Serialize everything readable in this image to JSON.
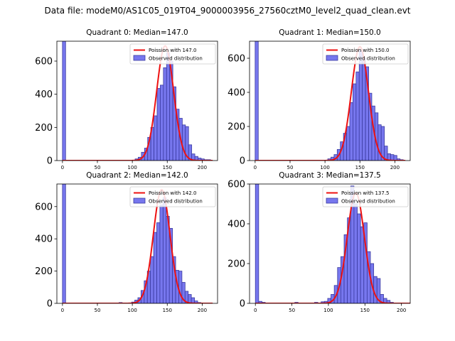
{
  "figure": {
    "suptitle": "Data file: modeM0/AS1C05_019T04_9000003956_27560cztM0_level2_quad_clean.evt"
  },
  "chart_data": [
    {
      "type": "bar",
      "title": "Quadrant 0: Median=147.0",
      "xlim": [
        -8,
        222
      ],
      "ylim": [
        0,
        720
      ],
      "xticks": [
        0,
        50,
        100,
        150,
        200
      ],
      "yticks": [
        0,
        200,
        400,
        600
      ],
      "bin_width": 4.5,
      "bins": [
        {
          "x": 0,
          "count": 720
        },
        {
          "x": 104,
          "count": 10
        },
        {
          "x": 108.5,
          "count": 20
        },
        {
          "x": 113,
          "count": 50
        },
        {
          "x": 117.5,
          "count": 75
        },
        {
          "x": 122,
          "count": 140
        },
        {
          "x": 126.5,
          "count": 200
        },
        {
          "x": 131,
          "count": 270
        },
        {
          "x": 135.5,
          "count": 435
        },
        {
          "x": 140,
          "count": 455
        },
        {
          "x": 144.5,
          "count": 560
        },
        {
          "x": 149,
          "count": 650
        },
        {
          "x": 153.5,
          "count": 600
        },
        {
          "x": 158,
          "count": 445
        },
        {
          "x": 162.5,
          "count": 310
        },
        {
          "x": 167,
          "count": 255
        },
        {
          "x": 171.5,
          "count": 215
        },
        {
          "x": 176,
          "count": 205
        },
        {
          "x": 180.5,
          "count": 95
        },
        {
          "x": 185,
          "count": 40
        },
        {
          "x": 189.5,
          "count": 25
        },
        {
          "x": 194,
          "count": 15
        },
        {
          "x": 198.5,
          "count": 10
        },
        {
          "x": 203,
          "count": 5
        },
        {
          "x": 207.5,
          "count": 5
        }
      ],
      "poisson": {
        "mean": 147.0,
        "peak": 692
      },
      "legend": {
        "position": "top-right",
        "entries": [
          "Poission with 147.0",
          "Observed distribution"
        ]
      }
    },
    {
      "type": "bar",
      "title": "Quadrant 1: Median=150.0",
      "xlim": [
        -8,
        222
      ],
      "ylim": [
        0,
        700
      ],
      "xticks": [
        0,
        50,
        100,
        150,
        200
      ],
      "yticks": [
        0,
        200,
        400,
        600
      ],
      "bin_width": 4.5,
      "bins": [
        {
          "x": 0,
          "count": 700
        },
        {
          "x": 104,
          "count": 10
        },
        {
          "x": 108.5,
          "count": 20
        },
        {
          "x": 113,
          "count": 35
        },
        {
          "x": 117.5,
          "count": 65
        },
        {
          "x": 122,
          "count": 110
        },
        {
          "x": 126.5,
          "count": 160
        },
        {
          "x": 131,
          "count": 200
        },
        {
          "x": 135.5,
          "count": 340
        },
        {
          "x": 140,
          "count": 450
        },
        {
          "x": 144.5,
          "count": 520
        },
        {
          "x": 149,
          "count": 645
        },
        {
          "x": 153.5,
          "count": 600
        },
        {
          "x": 158,
          "count": 550
        },
        {
          "x": 162.5,
          "count": 395
        },
        {
          "x": 167,
          "count": 320
        },
        {
          "x": 171.5,
          "count": 280
        },
        {
          "x": 176,
          "count": 210
        },
        {
          "x": 180.5,
          "count": 200
        },
        {
          "x": 185,
          "count": 85
        },
        {
          "x": 189.5,
          "count": 40
        },
        {
          "x": 194,
          "count": 35
        },
        {
          "x": 198.5,
          "count": 30
        },
        {
          "x": 203,
          "count": 10
        },
        {
          "x": 207.5,
          "count": 5
        }
      ],
      "poisson": {
        "mean": 150.0,
        "peak": 668
      },
      "legend": {
        "position": "top-right",
        "entries": [
          "Poission with 150.0",
          "Observed distribution"
        ]
      }
    },
    {
      "type": "bar",
      "title": "Quadrant 2: Median=142.0",
      "xlim": [
        -8,
        222
      ],
      "ylim": [
        0,
        740
      ],
      "xticks": [
        0,
        50,
        100,
        150,
        200
      ],
      "yticks": [
        0,
        200,
        400,
        600
      ],
      "bin_width": 4.5,
      "bins": [
        {
          "x": 0,
          "count": 740
        },
        {
          "x": 81,
          "count": 5
        },
        {
          "x": 99,
          "count": 8
        },
        {
          "x": 103.5,
          "count": 20
        },
        {
          "x": 108,
          "count": 35
        },
        {
          "x": 112.5,
          "count": 80
        },
        {
          "x": 117,
          "count": 140
        },
        {
          "x": 121.5,
          "count": 200
        },
        {
          "x": 126,
          "count": 290
        },
        {
          "x": 130.5,
          "count": 440
        },
        {
          "x": 135,
          "count": 500
        },
        {
          "x": 139.5,
          "count": 610
        },
        {
          "x": 144,
          "count": 655
        },
        {
          "x": 148.5,
          "count": 540
        },
        {
          "x": 153,
          "count": 465
        },
        {
          "x": 157.5,
          "count": 290
        },
        {
          "x": 162,
          "count": 205
        },
        {
          "x": 166.5,
          "count": 200
        },
        {
          "x": 171,
          "count": 130
        },
        {
          "x": 175.5,
          "count": 75
        },
        {
          "x": 180,
          "count": 55
        },
        {
          "x": 184.5,
          "count": 35
        },
        {
          "x": 189,
          "count": 15
        },
        {
          "x": 193.5,
          "count": 5
        }
      ],
      "poisson": {
        "mean": 142.0,
        "peak": 705
      },
      "legend": {
        "position": "top-right",
        "entries": [
          "Poission with 142.0",
          "Observed distribution"
        ]
      }
    },
    {
      "type": "bar",
      "title": "Quadrant 3: Median=137.5",
      "xlim": [
        -8,
        212
      ],
      "ylim": [
        0,
        600
      ],
      "xticks": [
        0,
        50,
        100,
        150,
        200
      ],
      "yticks": [
        0,
        200,
        400,
        600
      ],
      "bin_width": 4.5,
      "bins": [
        {
          "x": 0,
          "count": 600
        },
        {
          "x": 4.5,
          "count": 10
        },
        {
          "x": 9,
          "count": 5
        },
        {
          "x": 54,
          "count": 5
        },
        {
          "x": 81,
          "count": 5
        },
        {
          "x": 90,
          "count": 8
        },
        {
          "x": 94.5,
          "count": 10
        },
        {
          "x": 99,
          "count": 25
        },
        {
          "x": 103.5,
          "count": 45
        },
        {
          "x": 108,
          "count": 90
        },
        {
          "x": 112.5,
          "count": 180
        },
        {
          "x": 117,
          "count": 235
        },
        {
          "x": 121.5,
          "count": 345
        },
        {
          "x": 126,
          "count": 430
        },
        {
          "x": 130.5,
          "count": 590
        },
        {
          "x": 135,
          "count": 500
        },
        {
          "x": 139.5,
          "count": 450
        },
        {
          "x": 144,
          "count": 385
        },
        {
          "x": 148.5,
          "count": 405
        },
        {
          "x": 153,
          "count": 260
        },
        {
          "x": 157.5,
          "count": 200
        },
        {
          "x": 162,
          "count": 135
        },
        {
          "x": 166.5,
          "count": 125
        },
        {
          "x": 171,
          "count": 45
        },
        {
          "x": 175.5,
          "count": 25
        },
        {
          "x": 180,
          "count": 15
        },
        {
          "x": 184.5,
          "count": 5
        }
      ],
      "poisson": {
        "mean": 137.5,
        "peak": 555
      },
      "legend": {
        "position": "top-right",
        "entries": [
          "Poission with 137.5",
          "Observed distribution"
        ]
      }
    }
  ],
  "colors": {
    "bar_fill": "#7777ee",
    "bar_edge": "#3a3aa0",
    "poisson_line": "#ee1111",
    "legend_frame": "#cccccc"
  }
}
